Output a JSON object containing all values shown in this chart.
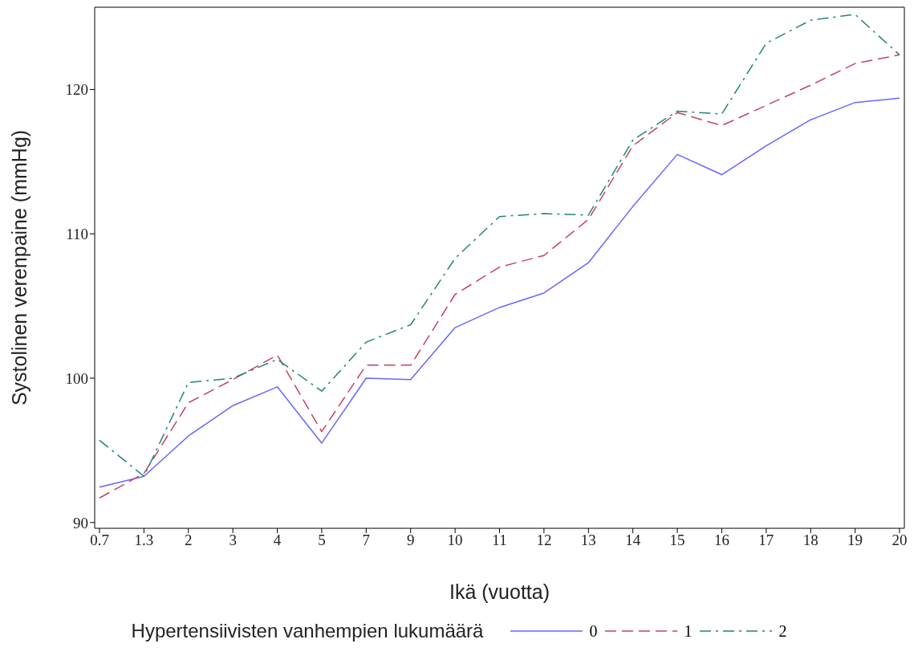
{
  "chart_data": {
    "type": "line",
    "xlabel": "Ikä (vuotta)",
    "ylabel": "Systolinen verenpaine (mmHg)",
    "legend_title": "Hypertensiivisten vanhempien lukumäärä",
    "legend": "bottom",
    "grid": false,
    "categories": [
      "0.7",
      "1.3",
      "2",
      "3",
      "4",
      "5",
      "7",
      "9",
      "10",
      "11",
      "12",
      "13",
      "14",
      "15",
      "16",
      "17",
      "18",
      "19",
      "20"
    ],
    "ylim": [
      89.6,
      125.7
    ],
    "yticks": [
      90,
      100,
      110,
      120
    ],
    "series": [
      {
        "name": "0",
        "color": "#6666ff",
        "line_style": "solid",
        "values": [
          92.45,
          93.2,
          96.0,
          98.1,
          99.4,
          95.5,
          100.0,
          99.9,
          103.5,
          104.9,
          105.9,
          108.0,
          111.9,
          115.5,
          114.1,
          116.1,
          117.9,
          119.1,
          119.4
        ]
      },
      {
        "name": "1",
        "color": "#c4455a",
        "line_style": "dashed",
        "values": [
          91.7,
          93.4,
          98.3,
          99.9,
          101.6,
          96.3,
          100.9,
          100.9,
          105.8,
          107.7,
          108.5,
          111.0,
          116.1,
          118.4,
          117.5,
          118.9,
          120.3,
          121.8,
          122.4
        ]
      },
      {
        "name": "2",
        "color": "#21857a",
        "line_style": "dashdot",
        "values": [
          95.7,
          93.2,
          99.7,
          100.0,
          101.3,
          99.1,
          102.5,
          103.7,
          108.3,
          111.2,
          111.4,
          111.3,
          116.5,
          118.5,
          118.3,
          123.2,
          124.8,
          125.2,
          122.4
        ]
      }
    ]
  }
}
